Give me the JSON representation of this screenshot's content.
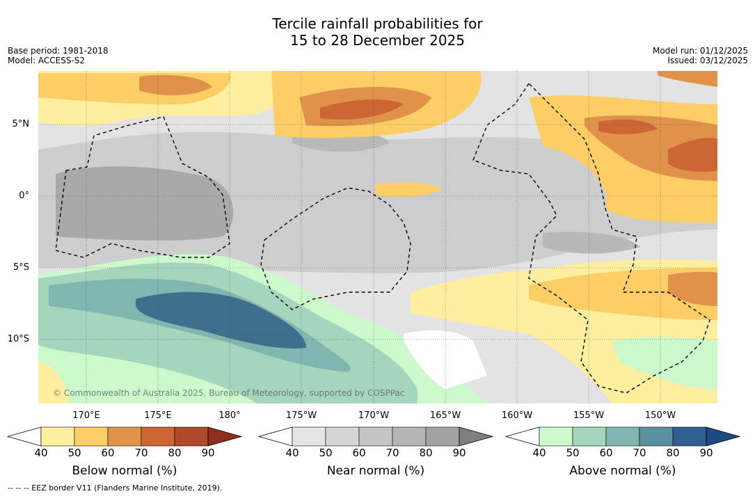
{
  "title": {
    "line1": "Tercile rainfall probabilities for",
    "line2": "15 to 28 December 2025"
  },
  "meta_left": {
    "base_period": "Base period: 1981-2018",
    "model": "Model: ACCESS-S2"
  },
  "meta_right": {
    "model_run": "Model run: 01/12/2025",
    "issued": "Issued: 03/12/2025"
  },
  "lat_labels": [
    "5°N",
    "0°",
    "5°S",
    "10°S"
  ],
  "lon_labels": [
    "170°E",
    "175°E",
    "180°",
    "175°W",
    "170°W",
    "165°W",
    "160°W",
    "155°W",
    "150°W"
  ],
  "copyright": "© Commonwealth of Australia 2025, Bureau of Meteorology, supported by COSPPac",
  "colorbars": [
    {
      "title": "Below normal (%)",
      "ticks": [
        "40",
        "50",
        "60",
        "70",
        "80",
        "90"
      ],
      "colors": [
        "#fdeea0",
        "#fdcd66",
        "#e0924a",
        "#cc6635",
        "#b04a2c"
      ],
      "extend": "#8f2f20"
    },
    {
      "title": "Near normal (%)",
      "ticks": [
        "40",
        "50",
        "60",
        "70",
        "80",
        "90"
      ],
      "colors": [
        "#e4e4e4",
        "#d5d5d5",
        "#c5c5c5",
        "#b5b5b5",
        "#a3a3a3"
      ],
      "extend": "#7f7f7f"
    },
    {
      "title": "Above normal (%)",
      "ticks": [
        "40",
        "50",
        "60",
        "70",
        "80",
        "90"
      ],
      "colors": [
        "#ccf9cc",
        "#a5d6bd",
        "#81b6ae",
        "#5a919e",
        "#325f92"
      ],
      "extend": "#1d4a80"
    }
  ],
  "footer": "--  --  -- EEZ border V11 (Flanders Marine Institute, 2019).",
  "colors": {
    "grey_bg": "#e3e3e3",
    "grey_mid": "#cccccc",
    "grey_dark": "#a8a8a8"
  }
}
